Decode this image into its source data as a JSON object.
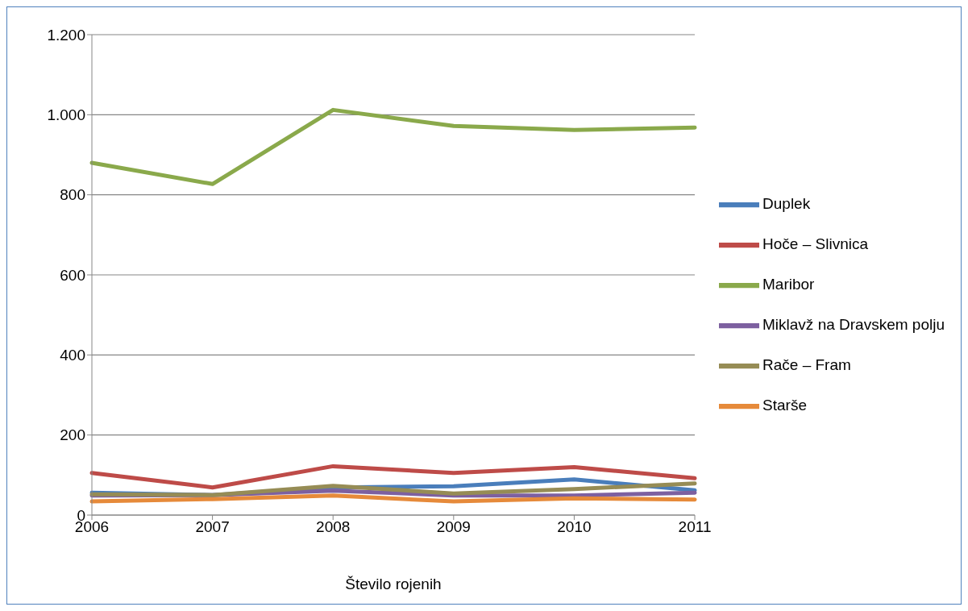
{
  "chart_data": {
    "type": "line",
    "xlabel": "Število rojenih",
    "categories": [
      "2006",
      "2007",
      "2008",
      "2009",
      "2010",
      "2011"
    ],
    "series": [
      {
        "name": "Duplek",
        "color": "#4a7ebb",
        "values": [
          56,
          50,
          69,
          72,
          89,
          62
        ]
      },
      {
        "name": "Hoče – Slivnica",
        "color": "#be4b48",
        "values": [
          105,
          69,
          122,
          105,
          120,
          92
        ]
      },
      {
        "name": "Maribor",
        "color": "#8aa94b",
        "values": [
          880,
          827,
          1012,
          972,
          962,
          968
        ]
      },
      {
        "name": "Miklavž na Dravskem polju",
        "color": "#7d60a0",
        "values": [
          49,
          50,
          61,
          49,
          49,
          56
        ]
      },
      {
        "name": "Rače – Fram",
        "color": "#968c55",
        "values": [
          52,
          50,
          73,
          54,
          65,
          79
        ]
      },
      {
        "name": "Starše",
        "color": "#e68a3a",
        "values": [
          34,
          40,
          49,
          34,
          42,
          39
        ]
      }
    ],
    "ylim": [
      0,
      1200
    ],
    "yticks": [
      0,
      200,
      400,
      600,
      800,
      {
        "value": 1000,
        "label": "1.000"
      },
      {
        "value": 1200,
        "label": "1.200"
      }
    ],
    "grid": "y",
    "legend": "right",
    "marker": "none",
    "line_style": "solid"
  }
}
